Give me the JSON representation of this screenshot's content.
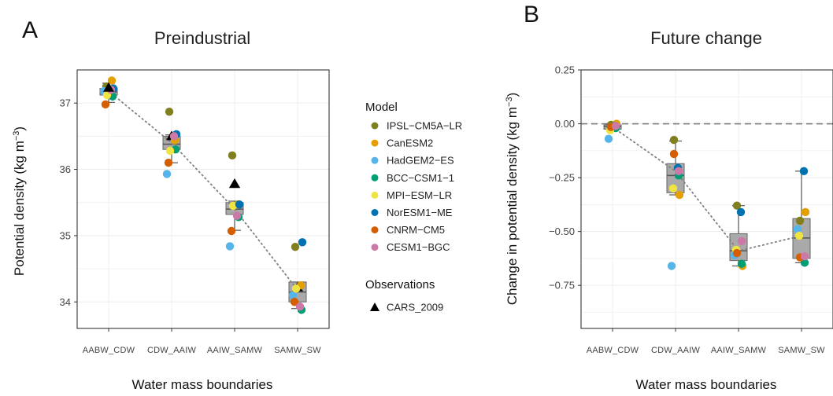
{
  "panels": {
    "a": {
      "letter": "A",
      "title": "Preindustrial",
      "ylabel": "Potential density (kg  m",
      "ylabel_sup": "−3",
      "ylabel_end": ")",
      "xlabel": "Water mass boundaries"
    },
    "b": {
      "letter": "B",
      "title": "Future change",
      "ylabel": "Change in potential density (kg  m",
      "ylabel_sup": "−3",
      "ylabel_end": ")",
      "xlabel": "Water mass boundaries"
    }
  },
  "legend": {
    "model_title": "Model",
    "obs_title": "Observations",
    "models": [
      {
        "name": "IPSL−CM5A−LR",
        "color": "#7f7f1f"
      },
      {
        "name": "CanESM2",
        "color": "#e69f00"
      },
      {
        "name": "HadGEM2−ES",
        "color": "#56b4e9"
      },
      {
        "name": "BCC−CSM1−1",
        "color": "#009e73"
      },
      {
        "name": "MPI−ESM−LR",
        "color": "#f0e442"
      },
      {
        "name": "NorESM1−ME",
        "color": "#0072b2"
      },
      {
        "name": "CNRM−CM5",
        "color": "#d55e00"
      },
      {
        "name": "CESM1−BGC",
        "color": "#cc79a7"
      }
    ],
    "obs": [
      {
        "name": "CARS_2009",
        "color": "#000000",
        "marker": "triangle"
      }
    ]
  },
  "chart_data": [
    {
      "type": "scatter",
      "title": "Preindustrial",
      "xlabel": "Water mass boundaries",
      "ylabel": "Potential density (kg m−3)",
      "categories": [
        "AABW_CDW",
        "CDW_AAIW",
        "AAIW_SAMW",
        "SAMW_SW"
      ],
      "ylim": [
        33.6,
        37.5
      ],
      "yticks": [
        34,
        35,
        36,
        37
      ],
      "grid": true,
      "boxes": [
        {
          "q1": 37.12,
          "median": 37.17,
          "q3": 37.22,
          "whisker_low": 37.01,
          "whisker_high": 37.3
        },
        {
          "q1": 36.3,
          "median": 36.38,
          "q3": 36.5,
          "whisker_low": 36.1,
          "whisker_high": 36.52
        },
        {
          "q1": 35.32,
          "median": 35.4,
          "q3": 35.5,
          "whisker_low": 35.08,
          "whisker_high": 35.52
        },
        {
          "q1": 34.0,
          "median": 34.15,
          "q3": 34.3,
          "whisker_low": 33.9,
          "whisker_high": 34.3
        }
      ],
      "series": [
        {
          "name": "IPSL−CM5A−LR",
          "values": [
            37.25,
            36.87,
            36.21,
            34.83
          ]
        },
        {
          "name": "CanESM2",
          "values": [
            37.34,
            36.44,
            35.47,
            34.25
          ]
        },
        {
          "name": "HadGEM2−ES",
          "values": [
            37.18,
            35.93,
            34.84,
            34.1
          ]
        },
        {
          "name": "BCC−CSM1−1",
          "values": [
            37.1,
            36.3,
            35.28,
            33.88
          ]
        },
        {
          "name": "MPI−ESM−LR",
          "values": [
            37.12,
            36.28,
            35.45,
            34.2
          ]
        },
        {
          "name": "NorESM1−ME",
          "values": [
            37.22,
            36.53,
            35.47,
            34.9
          ]
        },
        {
          "name": "CNRM−CM5",
          "values": [
            36.98,
            36.1,
            35.07,
            34.0
          ]
        },
        {
          "name": "CESM1−BGC",
          "values": [
            37.2,
            36.5,
            35.3,
            33.93
          ]
        }
      ],
      "observations": [
        {
          "name": "CARS_2009",
          "values": [
            37.23,
            36.5,
            35.78,
            34.22
          ]
        }
      ],
      "mean_trend": [
        37.18,
        36.4,
        35.4,
        34.18
      ]
    },
    {
      "type": "scatter",
      "title": "Future change",
      "xlabel": "Water mass boundaries",
      "ylabel": "Change in potential density (kg m−3)",
      "categories": [
        "AABW_CDW",
        "CDW_AAIW",
        "AAIW_SAMW",
        "SAMW_SW"
      ],
      "ylim": [
        -0.95,
        0.25
      ],
      "yticks": [
        0.25,
        0.0,
        -0.25,
        -0.5,
        -0.75
      ],
      "ytick_labels": [
        "0.25",
        "0.00",
        "−0.25",
        "−0.50",
        "−0.75"
      ],
      "zero_line": 0.0,
      "grid": true,
      "boxes": [
        {
          "q1": -0.025,
          "median": -0.012,
          "q3": -0.005,
          "whisker_low": -0.03,
          "whisker_high": 0.0
        },
        {
          "q1": -0.32,
          "median": -0.24,
          "q3": -0.185,
          "whisker_low": -0.33,
          "whisker_high": -0.08
        },
        {
          "q1": -0.635,
          "median": -0.59,
          "q3": -0.51,
          "whisker_low": -0.66,
          "whisker_high": -0.38
        },
        {
          "q1": -0.625,
          "median": -0.53,
          "q3": -0.44,
          "whisker_low": -0.645,
          "whisker_high": -0.22
        }
      ],
      "series": [
        {
          "name": "IPSL−CM5A−LR",
          "values": [
            -0.005,
            -0.075,
            -0.38,
            -0.45
          ]
        },
        {
          "name": "CanESM2",
          "values": [
            0.0,
            -0.33,
            -0.66,
            -0.41
          ]
        },
        {
          "name": "HadGEM2−ES",
          "values": [
            -0.07,
            -0.66,
            -0.61,
            -0.49
          ]
        },
        {
          "name": "BCC−CSM1−1",
          "values": [
            -0.02,
            -0.24,
            -0.65,
            -0.645
          ]
        },
        {
          "name": "MPI−ESM−LR",
          "values": [
            -0.03,
            -0.3,
            -0.585,
            -0.52
          ]
        },
        {
          "name": "NorESM1−ME",
          "values": [
            -0.01,
            -0.205,
            -0.41,
            -0.22
          ]
        },
        {
          "name": "CNRM−CM5",
          "values": [
            -0.015,
            -0.14,
            -0.6,
            -0.62
          ]
        },
        {
          "name": "CESM1−BGC",
          "values": [
            -0.01,
            -0.22,
            -0.545,
            -0.615
          ]
        }
      ],
      "mean_trend": [
        -0.015,
        -0.22,
        -0.59,
        -0.52
      ]
    }
  ]
}
